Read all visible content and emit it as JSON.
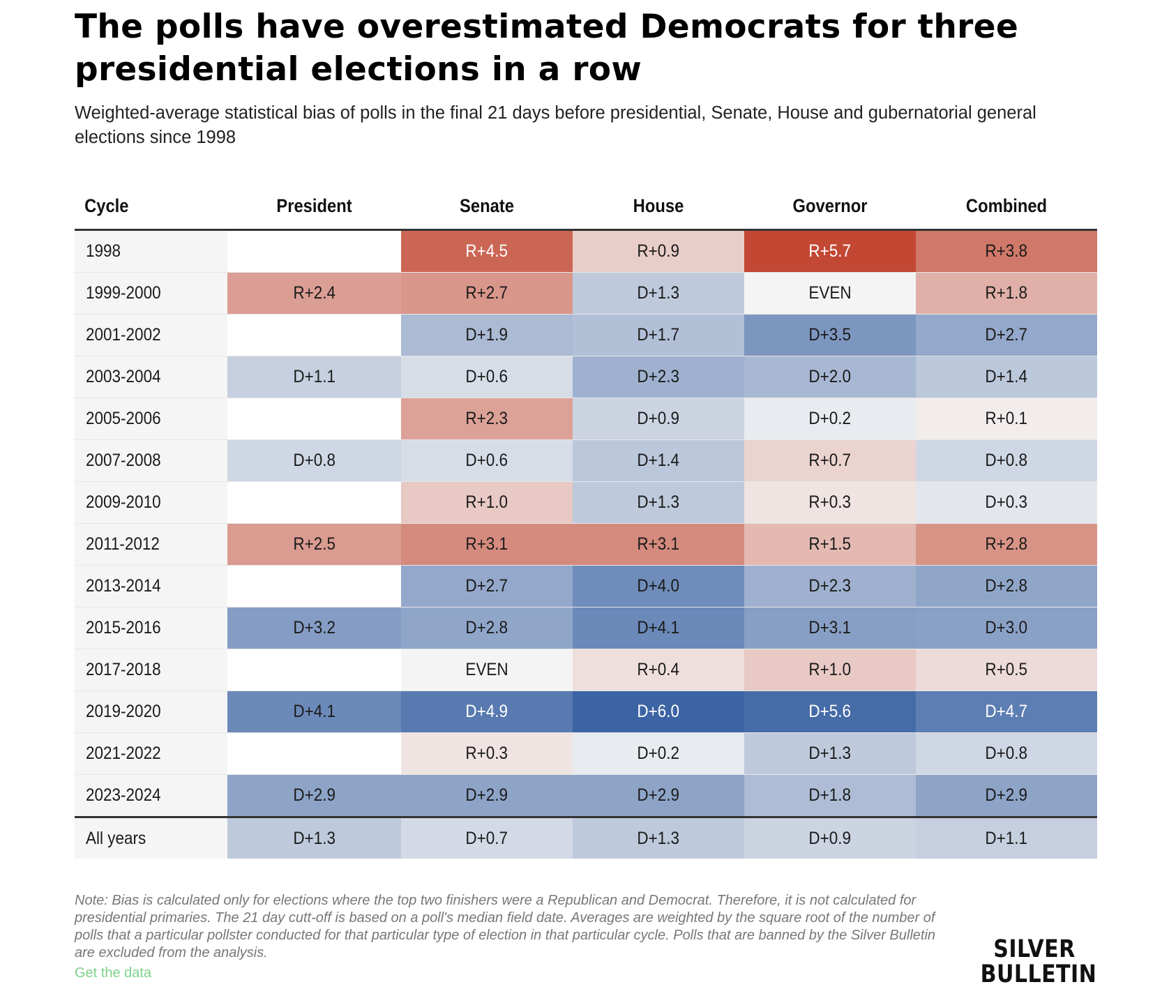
{
  "title": "The polls have overestimated Democrats for three presidential elections in a row",
  "subtitle": "Weighted-average statistical bias of polls in the final 21 days before presidential, Senate, House and gubernatorial general elections since 1998",
  "chart_data": {
    "type": "table",
    "columns": [
      "Cycle",
      "President",
      "Senate",
      "House",
      "Governor",
      "Combined"
    ],
    "rows": [
      {
        "cycle": "1998",
        "values": [
          "",
          "R+4.5",
          "R+0.9",
          "R+5.7",
          "R+3.8"
        ]
      },
      {
        "cycle": "1999-2000",
        "values": [
          "R+2.4",
          "R+2.7",
          "D+1.3",
          "EVEN",
          "R+1.8"
        ]
      },
      {
        "cycle": "2001-2002",
        "values": [
          "",
          "D+1.9",
          "D+1.7",
          "D+3.5",
          "D+2.7"
        ]
      },
      {
        "cycle": "2003-2004",
        "values": [
          "D+1.1",
          "D+0.6",
          "D+2.3",
          "D+2.0",
          "D+1.4"
        ]
      },
      {
        "cycle": "2005-2006",
        "values": [
          "",
          "R+2.3",
          "D+0.9",
          "D+0.2",
          "R+0.1"
        ]
      },
      {
        "cycle": "2007-2008",
        "values": [
          "D+0.8",
          "D+0.6",
          "D+1.4",
          "R+0.7",
          "D+0.8"
        ]
      },
      {
        "cycle": "2009-2010",
        "values": [
          "",
          "R+1.0",
          "D+1.3",
          "R+0.3",
          "D+0.3"
        ]
      },
      {
        "cycle": "2011-2012",
        "values": [
          "R+2.5",
          "R+3.1",
          "R+3.1",
          "R+1.5",
          "R+2.8"
        ]
      },
      {
        "cycle": "2013-2014",
        "values": [
          "",
          "D+2.7",
          "D+4.0",
          "D+2.3",
          "D+2.8"
        ]
      },
      {
        "cycle": "2015-2016",
        "values": [
          "D+3.2",
          "D+2.8",
          "D+4.1",
          "D+3.1",
          "D+3.0"
        ]
      },
      {
        "cycle": "2017-2018",
        "values": [
          "",
          "EVEN",
          "R+0.4",
          "R+1.0",
          "R+0.5"
        ]
      },
      {
        "cycle": "2019-2020",
        "values": [
          "D+4.1",
          "D+4.9",
          "D+6.0",
          "D+5.6",
          "D+4.7"
        ]
      },
      {
        "cycle": "2021-2022",
        "values": [
          "",
          "R+0.3",
          "D+0.2",
          "D+1.3",
          "D+0.8"
        ]
      },
      {
        "cycle": "2023-2024",
        "values": [
          "D+2.9",
          "D+2.9",
          "D+2.9",
          "D+1.8",
          "D+2.9"
        ]
      }
    ],
    "summary": {
      "cycle": "All years",
      "values": [
        "D+1.3",
        "D+0.7",
        "D+1.3",
        "D+0.9",
        "D+1.1"
      ]
    },
    "colors": {
      "republican_max": "#c0412c",
      "democrat_max": "#3c64a4",
      "neutral": "#f4f4f4",
      "empty": "#ffffff"
    }
  },
  "note": "Note: Bias is calculated only for elections where the top two finishers were a Republican and Democrat. Therefore, it is not calculated for presidential primaries. The 21 day cutt-off is based on a poll's median field date. Averages are weighted by the square root of the number of polls that a particular pollster conducted for that particular type of election in that particular cycle. Polls that are banned by the Silver Bulletin are excluded from the analysis.",
  "get_data_label": "Get the data",
  "logo": {
    "line1": "SILVER",
    "line2": "BULLETIN"
  }
}
